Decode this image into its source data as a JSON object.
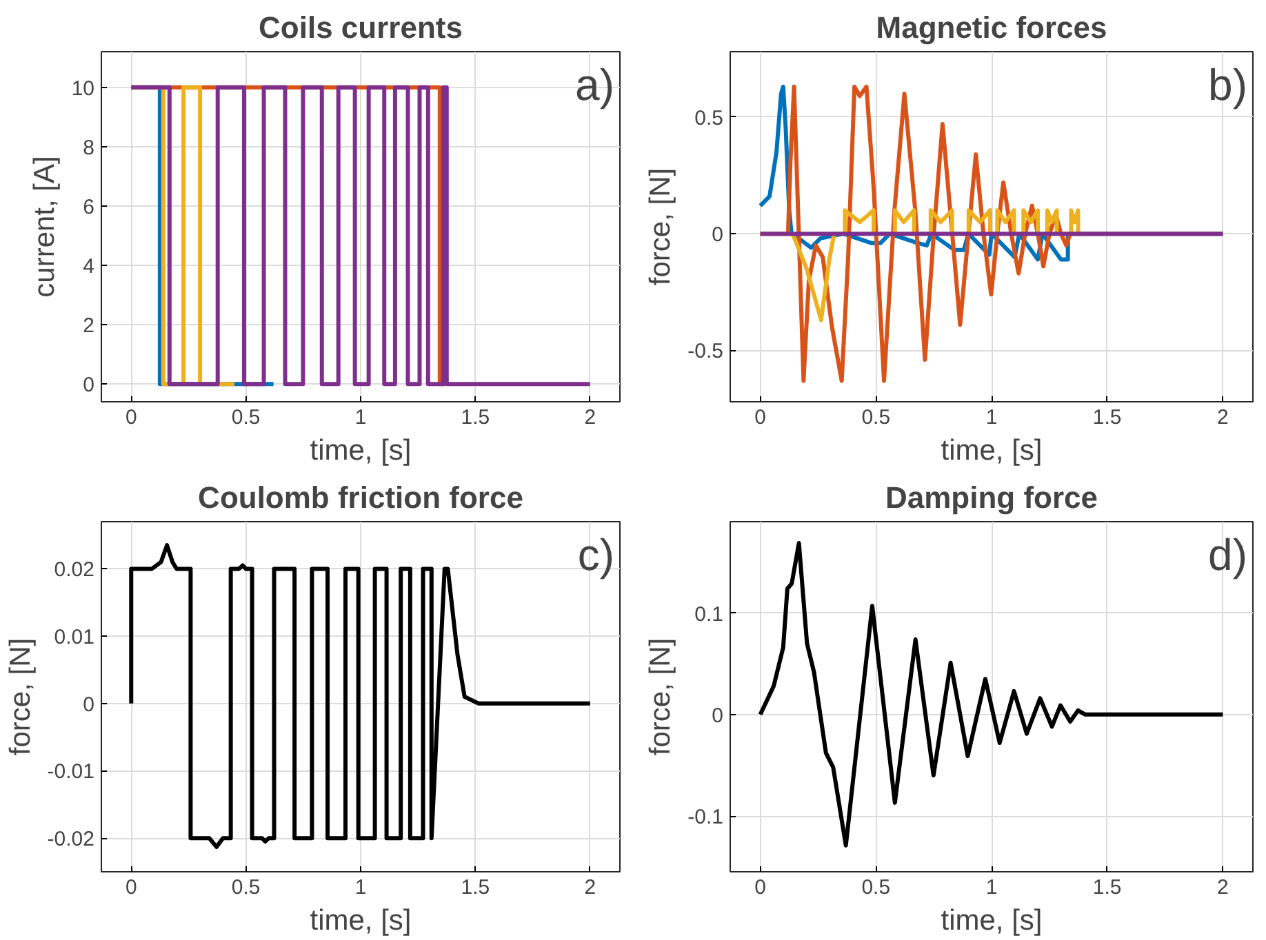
{
  "chart_data": [
    {
      "type": "step",
      "title": "Coils currents",
      "xlabel": "time, [s]",
      "ylabel": "current, [A]",
      "annotations": [
        "a)"
      ],
      "xlim": [
        -0.13,
        2.13
      ],
      "xticks": [
        0,
        0.5,
        1,
        1.5,
        2
      ],
      "ylim": [
        -0.6,
        11.2
      ],
      "yticks": [
        0,
        2,
        4,
        6,
        8,
        10
      ],
      "grid": true,
      "series": [
        {
          "color": "#0072bd",
          "x": [
            0,
            0.125,
            0.62
          ],
          "values": [
            10,
            0,
            0
          ]
        },
        {
          "color": "#d95319",
          "x": [
            0,
            1.345,
            1.368
          ],
          "values": [
            10,
            0,
            0
          ]
        },
        {
          "color": "#edb120",
          "x": [
            0,
            0.14,
            0.228,
            0.3,
            0.45
          ],
          "values": [
            10,
            0,
            10,
            0,
            0
          ]
        },
        {
          "color": "#7e2f8e",
          "x": [
            0,
            0.167,
            0.377,
            0.492,
            0.578,
            0.671,
            0.749,
            0.831,
            0.903,
            0.975,
            1.035,
            1.103,
            1.15,
            1.206,
            1.257,
            1.294,
            1.36,
            1.375,
            2
          ],
          "values": [
            10,
            0,
            10,
            0,
            10,
            0,
            10,
            0,
            10,
            0,
            10,
            0,
            10,
            0,
            10,
            0,
            10,
            0,
            0
          ]
        }
      ]
    },
    {
      "type": "line",
      "title": "Magnetic forces",
      "xlabel": "time, [s]",
      "ylabel": "force, [N]",
      "annotations": [
        "b)"
      ],
      "xlim": [
        -0.13,
        2.13
      ],
      "xticks": [
        0,
        0.5,
        1,
        1.5,
        2
      ],
      "ylim": [
        -0.72,
        0.78
      ],
      "yticks": [
        -0.5,
        0,
        0.5
      ],
      "grid": true,
      "series": [
        {
          "color": "#0072bd",
          "x": [
            0,
            0.04,
            0.07,
            0.09,
            0.099,
            0.11,
            0.125,
            0.135,
            0.18,
            0.22,
            0.26,
            0.36,
            0.48,
            0.52,
            0.56,
            0.68,
            0.72,
            0.74,
            0.84,
            0.88,
            0.9,
            0.99,
            1.0,
            1.1,
            1.12,
            1.2,
            1.22,
            1.3,
            1.33,
            1.33,
            2
          ],
          "values": [
            0.12,
            0.16,
            0.35,
            0.6,
            0.63,
            0.45,
            0.1,
            0,
            -0.03,
            -0.06,
            -0.02,
            0,
            -0.04,
            -0.04,
            0,
            -0.04,
            -0.05,
            0,
            -0.07,
            -0.07,
            0,
            -0.09,
            0,
            -0.1,
            0,
            -0.11,
            0,
            -0.11,
            -0.11,
            0,
            0
          ]
        },
        {
          "color": "#d95319",
          "x": [
            0,
            0.12,
            0.13,
            0.146,
            0.16,
            0.187,
            0.21,
            0.24,
            0.27,
            0.31,
            0.352,
            0.38,
            0.407,
            0.43,
            0.459,
            0.49,
            0.535,
            0.58,
            0.623,
            0.67,
            0.712,
            0.75,
            0.788,
            0.83,
            0.864,
            0.9,
            0.932,
            0.965,
            0.998,
            1.025,
            1.051,
            1.085,
            1.117,
            1.145,
            1.175,
            1.2,
            1.224,
            1.25,
            1.278,
            1.3,
            1.323,
            1.34,
            2
          ],
          "values": [
            0,
            0,
            0.3,
            0.63,
            0.2,
            -0.63,
            -0.2,
            -0.05,
            -0.1,
            -0.4,
            -0.63,
            -0.1,
            0.63,
            0.59,
            0.63,
            0.2,
            -0.63,
            0.1,
            0.6,
            0.1,
            -0.54,
            0,
            0.47,
            0,
            -0.39,
            0,
            0.34,
            0,
            -0.26,
            0,
            0.22,
            0,
            -0.17,
            0,
            0.12,
            0,
            -0.14,
            0,
            0.08,
            0,
            -0.05,
            0,
            0
          ]
        },
        {
          "color": "#edb120",
          "x": [
            0,
            0.14,
            0.2,
            0.263,
            0.3,
            0.32,
            0.366,
            0.366,
            0.43,
            0.49,
            0.49,
            0.582,
            0.582,
            0.62,
            0.665,
            0.665,
            0.737,
            0.737,
            0.78,
            0.829,
            0.829,
            0.901,
            0.901,
            0.95,
            0.994,
            0.994,
            1.025,
            1.025,
            1.06,
            1.097,
            1.097,
            1.138,
            1.138,
            1.17,
            1.2,
            1.2,
            1.241,
            1.241,
            1.26,
            1.282,
            1.282,
            1.344,
            1.344,
            1.36,
            1.374,
            1.374
          ],
          "values": [
            0,
            0,
            -0.15,
            -0.37,
            -0.1,
            0,
            0,
            0.1,
            0.05,
            0.1,
            0,
            0,
            0.1,
            0.05,
            0.1,
            0,
            0,
            0.1,
            0.05,
            0.1,
            0,
            0,
            0.1,
            0.05,
            0.1,
            0,
            0,
            0.1,
            0.05,
            0.1,
            0,
            0,
            0.1,
            0.05,
            0.1,
            0,
            0,
            0.1,
            0.05,
            0.1,
            0,
            0,
            0.1,
            0.05,
            0.1,
            0
          ]
        },
        {
          "color": "#7e2f8e",
          "x": [
            0,
            2
          ],
          "values": [
            0,
            0
          ]
        }
      ]
    },
    {
      "type": "line",
      "title": "Coulomb friction force",
      "xlabel": "time, [s]",
      "ylabel": "force, [N]",
      "annotations": [
        "c)"
      ],
      "xlim": [
        -0.13,
        2.13
      ],
      "xticks": [
        0,
        0.5,
        1,
        1.5,
        2
      ],
      "ylim": [
        -0.025,
        0.027
      ],
      "yticks": [
        -0.02,
        -0.01,
        0,
        0.01,
        0.02
      ],
      "grid": true,
      "series": [
        {
          "color": "#000000",
          "x": [
            0,
            0,
            0.09,
            0.13,
            0.156,
            0.18,
            0.198,
            0.259,
            0.259,
            0.34,
            0.372,
            0.4,
            0.434,
            0.434,
            0.47,
            0.486,
            0.5,
            0.527,
            0.527,
            0.57,
            0.584,
            0.6,
            0.623,
            0.623,
            0.712,
            0.712,
            0.788,
            0.788,
            0.856,
            0.856,
            0.934,
            0.934,
            0.99,
            0.99,
            1.062,
            1.062,
            1.113,
            1.113,
            1.175,
            1.175,
            1.216,
            1.216,
            1.272,
            1.272,
            1.309,
            1.309,
            1.366,
            1.38,
            1.422,
            1.453,
            1.514,
            2
          ],
          "values": [
            0,
            0.02,
            0.02,
            0.021,
            0.0235,
            0.021,
            0.02,
            0.02,
            -0.02,
            -0.02,
            -0.0213,
            -0.02,
            -0.02,
            0.02,
            0.02,
            0.0205,
            0.02,
            0.02,
            -0.02,
            -0.02,
            -0.0205,
            -0.02,
            -0.02,
            0.02,
            0.02,
            -0.02,
            -0.02,
            0.02,
            0.02,
            -0.02,
            -0.02,
            0.02,
            0.02,
            -0.02,
            -0.02,
            0.02,
            0.02,
            -0.02,
            -0.02,
            0.02,
            0.02,
            -0.02,
            -0.02,
            0.02,
            0.02,
            -0.02,
            0.02,
            0.02,
            0.0073,
            0.001,
            0,
            0
          ]
        }
      ]
    },
    {
      "type": "line",
      "title": "Damping force",
      "xlabel": "time, [s]",
      "ylabel": "force, [N]",
      "annotations": [
        "d)"
      ],
      "xlim": [
        -0.13,
        2.13
      ],
      "xticks": [
        0,
        0.5,
        1,
        1.5,
        2
      ],
      "ylim": [
        -0.155,
        0.19
      ],
      "yticks": [
        -0.1,
        0,
        0.1
      ],
      "grid": true,
      "series": [
        {
          "color": "#000000",
          "x": [
            0,
            0.058,
            0.099,
            0.117,
            0.136,
            0.167,
            0.202,
            0.232,
            0.284,
            0.315,
            0.37,
            0.484,
            0.582,
            0.671,
            0.749,
            0.823,
            0.897,
            0.973,
            1.035,
            1.097,
            1.152,
            1.21,
            1.261,
            1.298,
            1.34,
            1.374,
            1.405,
            2
          ],
          "values": [
            0,
            0.028,
            0.066,
            0.124,
            0.129,
            0.169,
            0.07,
            0.042,
            -0.038,
            -0.052,
            -0.129,
            0.107,
            -0.087,
            0.074,
            -0.06,
            0.051,
            -0.041,
            0.035,
            -0.028,
            0.023,
            -0.019,
            0.016,
            -0.012,
            0.009,
            -0.007,
            0.004,
            0,
            0
          ]
        }
      ]
    }
  ]
}
